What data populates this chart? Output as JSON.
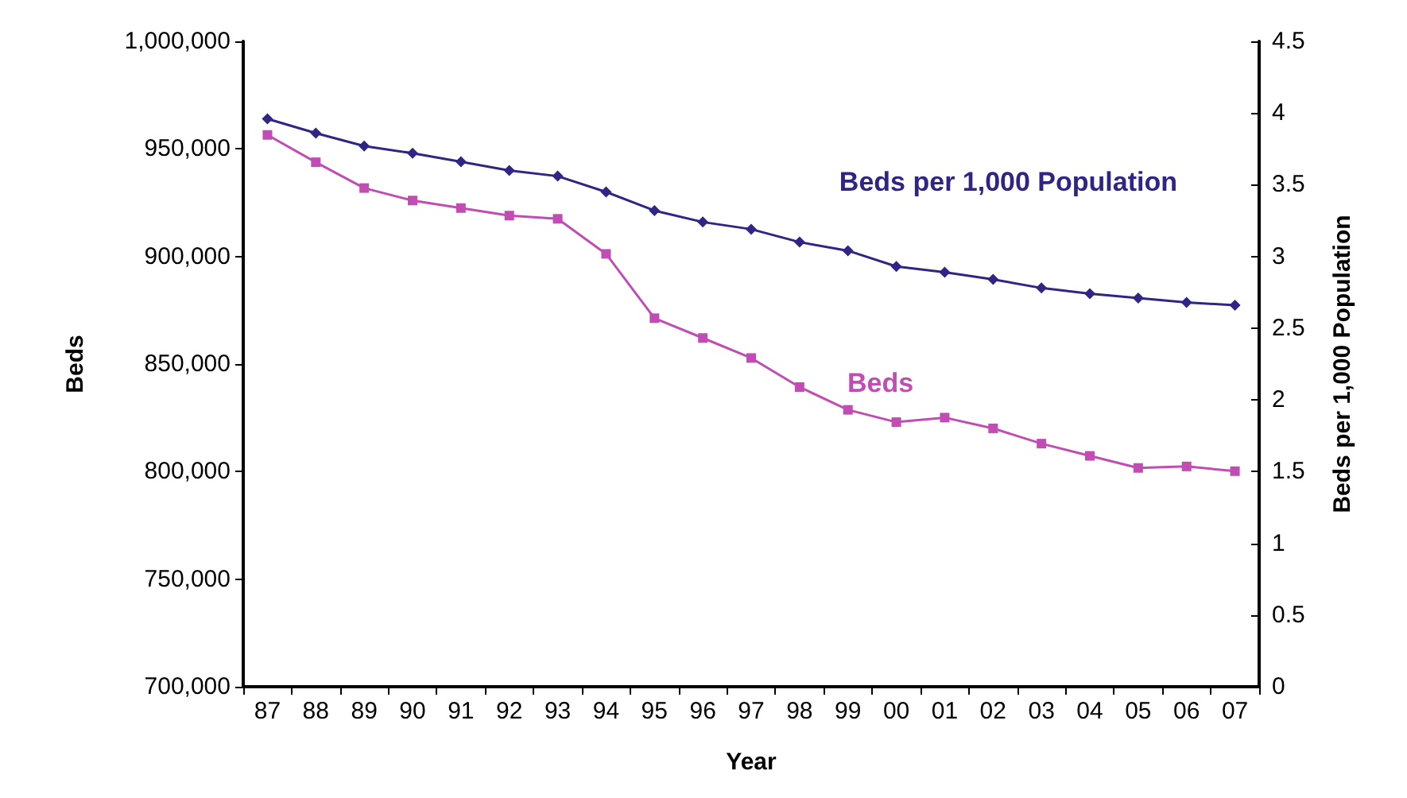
{
  "chart_data": {
    "type": "line",
    "xlabel": "Year",
    "ylabel": "Beds",
    "y2label": "Beds per 1,000 Population",
    "categories": [
      "87",
      "88",
      "89",
      "90",
      "91",
      "92",
      "93",
      "94",
      "95",
      "96",
      "97",
      "98",
      "99",
      "00",
      "01",
      "02",
      "03",
      "04",
      "05",
      "06",
      "07"
    ],
    "series": [
      {
        "name": "Beds",
        "color": "#c04cb4",
        "marker": "square",
        "values": [
          956500,
          943800,
          931800,
          926000,
          922500,
          919000,
          917500,
          901200,
          871300,
          862100,
          852800,
          839300,
          828700,
          823000,
          825100,
          820100,
          813000,
          807300,
          801700,
          802400,
          800200
        ]
      },
      {
        "name": "Beds per 1,000 Population",
        "color": "#2e2585",
        "marker": "diamond",
        "axis": "y2",
        "values": [
          3.96,
          3.86,
          3.77,
          3.72,
          3.66,
          3.6,
          3.56,
          3.45,
          3.32,
          3.24,
          3.19,
          3.1,
          3.04,
          2.93,
          2.89,
          2.84,
          2.78,
          2.74,
          2.71,
          2.68,
          2.66
        ]
      }
    ],
    "ylim": [
      700000,
      1000000
    ],
    "yticks": [
      {
        "value": 700000,
        "label": "700,000"
      },
      {
        "value": 750000,
        "label": "750,000"
      },
      {
        "value": 800000,
        "label": "800,000"
      },
      {
        "value": 850000,
        "label": "850,000"
      },
      {
        "value": 900000,
        "label": "900,000"
      },
      {
        "value": 950000,
        "label": "950,000"
      },
      {
        "value": 1000000,
        "label": "1,000,000"
      }
    ],
    "y2lim": [
      0,
      4.5
    ],
    "y2ticks": [
      0,
      0.5,
      1,
      1.5,
      2,
      2.5,
      3,
      3.5,
      4,
      4.5
    ],
    "grid": false,
    "legend": false,
    "line_style": "solid"
  }
}
